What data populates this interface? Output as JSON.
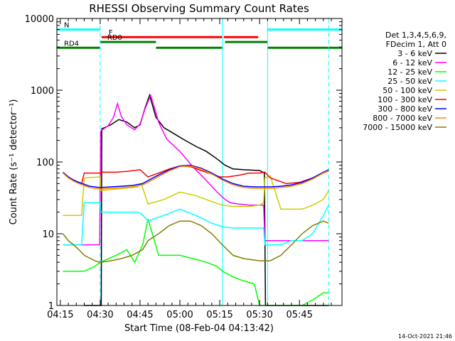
{
  "chart_data": {
    "type": "line",
    "title": "RHESSI Observing Summary Count Rates",
    "xlabel": "Start Time (08-Feb-04 04:13:42)",
    "ylabel": "Count Rate (s⁻¹ detector⁻¹)",
    "xlim_min": [
      253.7,
      361
    ],
    "ylim": [
      1,
      10000
    ],
    "yscale": "log",
    "x_unit": "minutes after 00:00 UT, 08-Feb-04",
    "x_ticks": [
      {
        "v": 255,
        "label": "04:15"
      },
      {
        "v": 270,
        "label": "04:30"
      },
      {
        "v": 285,
        "label": "04:45"
      },
      {
        "v": 300,
        "label": "05:00"
      },
      {
        "v": 315,
        "label": "05:15"
      },
      {
        "v": 330,
        "label": "05:30"
      },
      {
        "v": 345,
        "label": "05:45"
      }
    ],
    "y_ticks": [
      {
        "v": 1,
        "label": "1"
      },
      {
        "v": 10,
        "label": "10"
      },
      {
        "v": 100,
        "label": "100"
      },
      {
        "v": 1000,
        "label": "1000"
      },
      {
        "v": 10000,
        "label": "10000"
      }
    ],
    "legend_header": [
      "Det 1,3,4,5,6,9,",
      "FDecim 1, Att 0"
    ],
    "legend_position": "right",
    "timestamp": "14-Oct-2021 21:46",
    "series": [
      {
        "name": "3 - 6 keV",
        "color": "#000000",
        "x": [
          264,
          270.4,
          270.6,
          274,
          277,
          280,
          283,
          285,
          287,
          288.6,
          291,
          294,
          298,
          302,
          306,
          310,
          314,
          317,
          320,
          324,
          330,
          331.8,
          332.2,
          338,
          344,
          350,
          356
        ],
        "y": [
          1,
          1,
          290,
          330,
          390,
          360,
          300,
          330,
          580,
          850,
          420,
          300,
          245,
          200,
          165,
          140,
          110,
          90,
          80,
          78,
          76,
          70,
          1,
          1,
          1,
          1,
          1
        ]
      },
      {
        "name": "6 - 12 keV",
        "color": "#ff00ff",
        "x": [
          256,
          264,
          268,
          269.8,
          270.2,
          273,
          275,
          276.5,
          278,
          280,
          283,
          285,
          287,
          289,
          290.5,
          292,
          295,
          300,
          305,
          310,
          314,
          317,
          319,
          322,
          326,
          330,
          331.5,
          332,
          334,
          338,
          342,
          346,
          350,
          356
        ],
        "y": [
          7,
          7,
          7,
          7,
          270,
          320,
          420,
          650,
          430,
          330,
          280,
          340,
          560,
          850,
          560,
          360,
          210,
          140,
          85,
          55,
          38,
          30,
          27,
          26,
          25,
          25,
          25,
          8,
          8,
          8,
          8,
          8,
          8,
          8
        ]
      },
      {
        "name": "12 - 25 keV",
        "color": "#00ff00",
        "x": [
          256,
          264,
          268,
          270,
          276,
          280,
          283,
          286,
          288,
          290,
          292,
          296,
          300,
          305,
          310,
          314,
          316,
          320,
          324,
          328,
          330,
          332,
          334,
          338,
          342,
          346,
          350,
          354,
          356
        ],
        "y": [
          3,
          3,
          3.5,
          4,
          5,
          6,
          4,
          7,
          16,
          9,
          5,
          5,
          5,
          4.5,
          4,
          3.5,
          3,
          2.5,
          2.2,
          2.0,
          1,
          1,
          1,
          1,
          1,
          1,
          1.2,
          1.5,
          1.5
        ]
      },
      {
        "name": "25 - 50 keV",
        "color": "#00ffff",
        "x": [
          256,
          263,
          264,
          270,
          270.2,
          276,
          282,
          284,
          285.5,
          288,
          294,
          300,
          306,
          312,
          316,
          320,
          326,
          330,
          331.5,
          332,
          334,
          338,
          342,
          346,
          350,
          354,
          356
        ],
        "y": [
          7,
          7,
          27,
          27,
          20,
          20,
          20,
          20,
          19,
          15,
          18,
          22,
          18,
          14,
          12.5,
          12,
          12,
          12,
          12,
          7,
          7,
          7,
          8,
          8,
          10,
          18,
          25
        ]
      },
      {
        "name": "50 - 100 keV",
        "color": "#cccc00",
        "x": [
          256,
          263,
          264,
          270,
          270.2,
          276,
          282,
          284,
          285.5,
          288,
          294,
          300,
          306,
          312,
          316,
          320,
          326,
          330,
          331.5,
          332,
          334,
          338,
          342,
          346,
          350,
          354,
          356
        ],
        "y": [
          18,
          18,
          60,
          62,
          40,
          42,
          44,
          45,
          50,
          26,
          30,
          38,
          34,
          28,
          25,
          24,
          24,
          25,
          27,
          60,
          64,
          22,
          22,
          22,
          25,
          30,
          40
        ]
      },
      {
        "name": "100 - 300 keV",
        "color": "#ff0000",
        "x": [
          256,
          258,
          260,
          262,
          263,
          264,
          270,
          270.2,
          276,
          280,
          285,
          288,
          292,
          296,
          300,
          304,
          308,
          312,
          315,
          318,
          322,
          326,
          330,
          331.5,
          332,
          334,
          340,
          345,
          350,
          354,
          356
        ],
        "y": [
          70,
          60,
          55,
          52,
          50,
          70,
          70,
          72,
          72,
          74,
          78,
          62,
          70,
          80,
          88,
          86,
          76,
          68,
          62,
          62,
          65,
          70,
          70,
          72,
          72,
          60,
          50,
          52,
          60,
          70,
          75
        ]
      },
      {
        "name": "300 - 800 keV",
        "color": "#0000ff",
        "x": [
          256,
          258,
          260,
          262,
          266,
          270,
          274,
          278,
          282,
          286,
          288,
          292,
          296,
          300,
          304,
          308,
          312,
          316,
          320,
          324,
          328,
          332,
          334,
          338,
          342,
          346,
          350,
          354,
          356
        ],
        "y": [
          72,
          62,
          56,
          52,
          46,
          44,
          45,
          46,
          47,
          50,
          55,
          66,
          78,
          88,
          90,
          82,
          70,
          58,
          50,
          46,
          45,
          45,
          45,
          46,
          48,
          52,
          60,
          72,
          78
        ]
      },
      {
        "name": "800 - 7000 keV",
        "color": "#ff8800",
        "x": [
          256,
          258,
          260,
          262,
          266,
          270,
          274,
          278,
          282,
          286,
          288,
          292,
          296,
          300,
          304,
          308,
          312,
          316,
          320,
          324,
          328,
          332,
          334,
          338,
          342,
          346,
          350,
          354,
          356
        ],
        "y": [
          70,
          60,
          54,
          50,
          44,
          42,
          43,
          44,
          45,
          48,
          52,
          63,
          75,
          86,
          88,
          80,
          68,
          56,
          48,
          44,
          43,
          43,
          43,
          44,
          46,
          50,
          58,
          70,
          76
        ]
      },
      {
        "name": "7000 - 15000 keV",
        "color": "#808000",
        "x": [
          256,
          258,
          260,
          262,
          264,
          268,
          270,
          274,
          278,
          282,
          286,
          288,
          292,
          296,
          300,
          304,
          308,
          312,
          316,
          320,
          324,
          330,
          332,
          334,
          338,
          342,
          346,
          350,
          354,
          356
        ],
        "y": [
          10,
          8,
          7,
          6,
          5,
          4.2,
          4,
          4.2,
          4.5,
          5,
          6,
          8,
          10,
          13,
          15,
          15,
          13,
          10,
          7,
          5,
          4.5,
          4.2,
          4.2,
          4.2,
          5,
          7,
          10,
          13,
          15,
          14
        ]
      }
    ],
    "mode_bars": [
      {
        "label": "N",
        "color": "#00ffff",
        "y": 7000,
        "segments": [
          [
            253.7,
            270
          ],
          [
            333,
            361
          ]
        ]
      },
      {
        "label": "F",
        "color": "#ff0000",
        "y": 5500,
        "segments": [
          [
            270.5,
            316
          ],
          [
            316.5,
            329.5
          ]
        ]
      },
      {
        "label": "RD0",
        "color": "#008000",
        "y": 4700,
        "segments": [
          [
            270,
            291
          ],
          [
            317,
            333
          ]
        ]
      },
      {
        "label": "RD4",
        "color": "#008000",
        "y": 3900,
        "segments": [
          [
            253.7,
            270
          ],
          [
            291,
            316
          ],
          [
            333,
            361
          ]
        ]
      }
    ],
    "vlines": [
      {
        "x": 253.7,
        "color": "#00ffff",
        "style": "solid"
      },
      {
        "x": 270,
        "color": "#00ffff",
        "style": "dashed"
      },
      {
        "x": 316,
        "color": "#00ffff",
        "style": "solid"
      },
      {
        "x": 333,
        "color": "#00ffff",
        "style": "solid"
      },
      {
        "x": 356,
        "color": "#00ffff",
        "style": "dashed"
      }
    ]
  }
}
